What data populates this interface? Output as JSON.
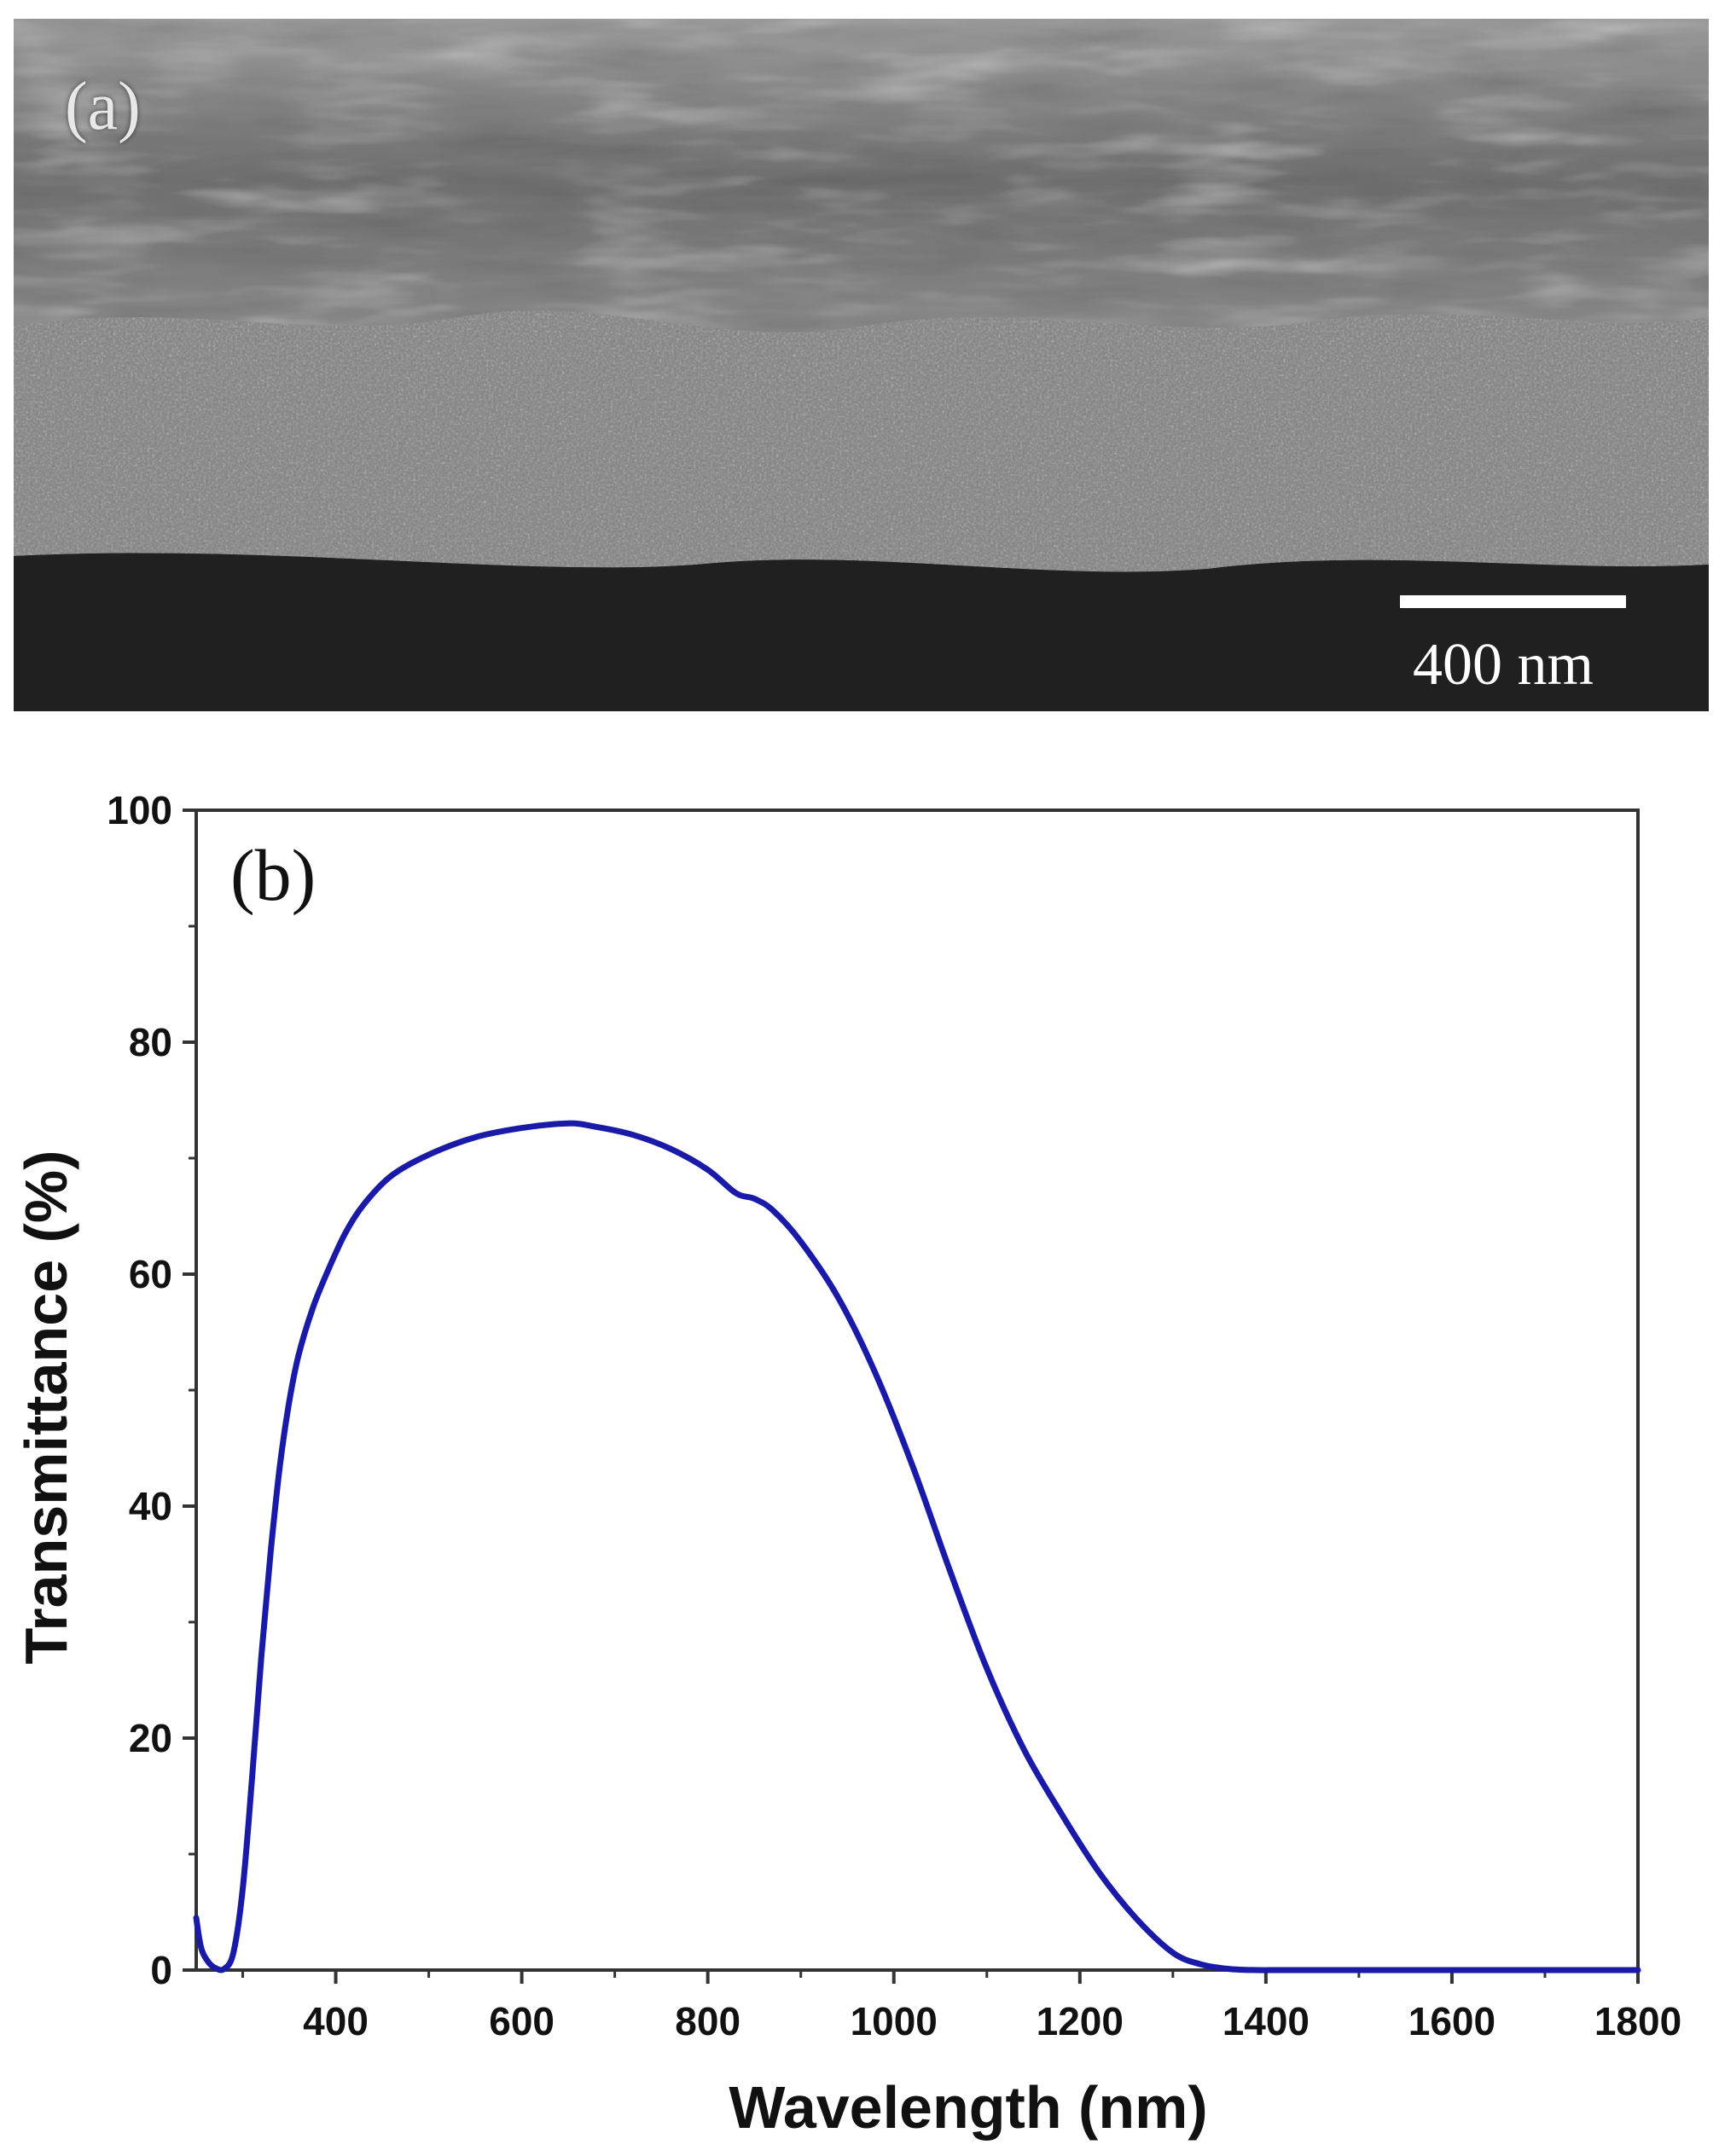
{
  "panel_a": {
    "label": "(a)",
    "scale_bar_text": "400 nm",
    "image_description_icon": "sem-cross-section-image"
  },
  "chart_data": {
    "type": "line",
    "panel_label": "(b)",
    "title": "",
    "xlabel": "Wavelength (nm)",
    "ylabel": "Transmittance (%)",
    "xlim": [
      250,
      1800
    ],
    "ylim": [
      0,
      100
    ],
    "xticks": [
      400,
      600,
      800,
      1000,
      1200,
      1400,
      1600,
      1800
    ],
    "yticks": [
      0,
      20,
      40,
      60,
      80,
      100
    ],
    "grid": false,
    "legend": "none",
    "series": [
      {
        "color": "#1a1aa8",
        "x": [
          250,
          255,
          262,
          270,
          280,
          290,
          300,
          310,
          320,
          330,
          340,
          350,
          360,
          375,
          390,
          410,
          430,
          460,
          500,
          550,
          600,
          650,
          680,
          720,
          760,
          800,
          830,
          850,
          870,
          900,
          940,
          980,
          1020,
          1060,
          1100,
          1140,
          1180,
          1220,
          1260,
          1300,
          1330,
          1360,
          1390,
          1420,
          1500,
          1600,
          1700,
          1800
        ],
        "y": [
          4.5,
          2.0,
          0.8,
          0.2,
          0.1,
          1.5,
          7.0,
          16.5,
          27.0,
          36.0,
          43.5,
          49.0,
          53.0,
          57.0,
          60.0,
          63.5,
          66.0,
          68.5,
          70.3,
          71.8,
          72.6,
          73.0,
          72.7,
          72.0,
          70.8,
          69.0,
          67.0,
          66.5,
          65.5,
          62.8,
          58.0,
          51.5,
          43.5,
          34.5,
          26.0,
          19.0,
          13.5,
          8.5,
          4.5,
          1.5,
          0.5,
          0.1,
          0.0,
          0.0,
          0.0,
          0.0,
          0.0,
          0.0
        ]
      }
    ]
  }
}
